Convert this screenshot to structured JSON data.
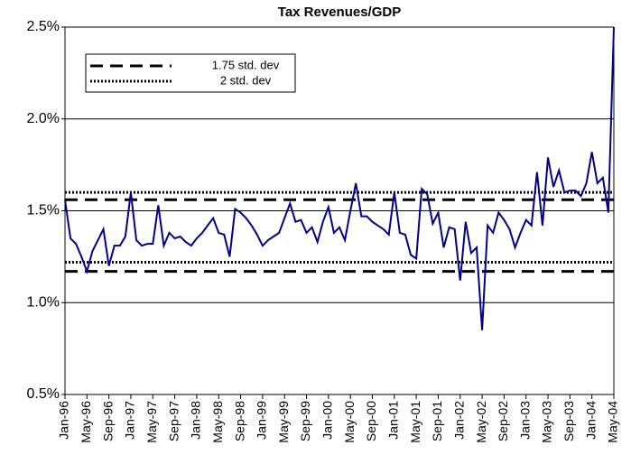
{
  "chart_data": {
    "type": "line",
    "title": "Tax Revenues/GDP",
    "categories": [
      "Jan-96",
      null,
      null,
      null,
      "May-96",
      null,
      null,
      null,
      "Sep-96",
      null,
      null,
      null,
      "Jan-97",
      null,
      null,
      null,
      "May-97",
      null,
      null,
      null,
      "Sep-97",
      null,
      null,
      null,
      "Jan-98",
      null,
      null,
      null,
      "May-98",
      null,
      null,
      null,
      "Sep-98",
      null,
      null,
      null,
      "Jan-99",
      null,
      null,
      null,
      "May-99",
      null,
      null,
      null,
      "Sep-99",
      null,
      null,
      null,
      "Jan-00",
      null,
      null,
      null,
      "May-00",
      null,
      null,
      null,
      "Sep-00",
      null,
      null,
      null,
      "Jan-01",
      null,
      null,
      null,
      "May-01",
      null,
      null,
      null,
      "Sep-01",
      null,
      null,
      null,
      "Jan-02",
      null,
      null,
      null,
      "May-02",
      null,
      null,
      null,
      "Sep-02",
      null,
      null,
      null,
      "Jan-03",
      null,
      null,
      null,
      "May-03",
      null,
      null,
      null,
      "Sep-03",
      null,
      null,
      null,
      "Jan-04",
      null,
      null,
      null,
      "May-04"
    ],
    "series": [
      {
        "color": "#00008b",
        "values": [
          1.56,
          1.35,
          1.32,
          1.25,
          1.17,
          1.28,
          1.34,
          1.4,
          1.2,
          1.31,
          1.31,
          1.36,
          1.6,
          1.34,
          1.31,
          1.32,
          1.32,
          1.53,
          1.31,
          1.38,
          1.35,
          1.36,
          1.33,
          1.31,
          1.35,
          1.38,
          1.42,
          1.46,
          1.38,
          1.37,
          1.25,
          1.51,
          1.49,
          1.46,
          1.42,
          1.37,
          1.31,
          1.34,
          1.36,
          1.38,
          1.46,
          1.54,
          1.44,
          1.45,
          1.38,
          1.41,
          1.33,
          1.44,
          1.52,
          1.38,
          1.41,
          1.34,
          1.5,
          1.65,
          1.47,
          1.47,
          1.44,
          1.42,
          1.4,
          1.37,
          1.6,
          1.38,
          1.37,
          1.26,
          1.24,
          1.62,
          1.59,
          1.43,
          1.49,
          1.3,
          1.41,
          1.4,
          1.12,
          1.44,
          1.27,
          1.3,
          0.85,
          1.42,
          1.38,
          1.49,
          1.45,
          1.4,
          1.3,
          1.38,
          1.45,
          1.42,
          1.71,
          1.42,
          1.79,
          1.63,
          1.72,
          1.6,
          1.61,
          1.61,
          1.58,
          1.65,
          1.82,
          1.65,
          1.68,
          1.49,
          2.5
        ]
      }
    ],
    "reference_lines": [
      {
        "name": "1.75 std. dev",
        "style": "dashed",
        "values": [
          1.17,
          1.56
        ]
      },
      {
        "name": "2 std. dev",
        "style": "dotted",
        "values": [
          1.22,
          1.6
        ]
      }
    ],
    "ylim": [
      0.5,
      2.5
    ],
    "yticks": [
      {
        "value": 0.5,
        "label": "0.5%"
      },
      {
        "value": 1.0,
        "label": "1.0%"
      },
      {
        "value": 1.5,
        "label": "1.5%"
      },
      {
        "value": 2.0,
        "label": "2.0%"
      },
      {
        "value": 2.5,
        "label": "2.5%"
      }
    ],
    "grid": true
  }
}
